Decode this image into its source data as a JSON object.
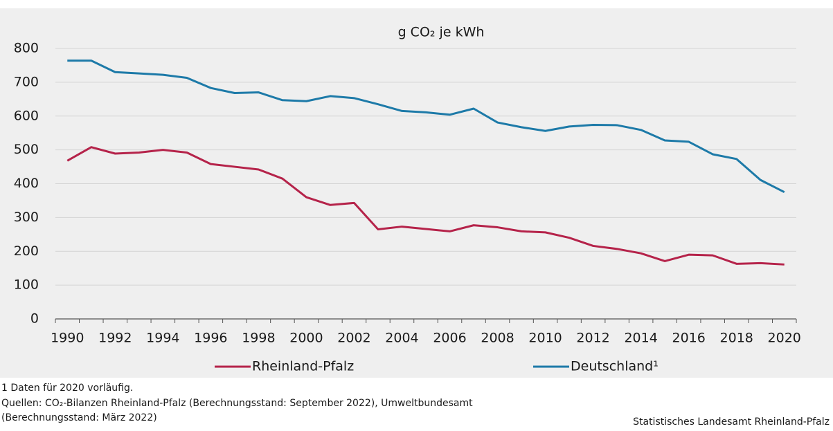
{
  "chart_data": {
    "type": "line",
    "title": "g CO₂ je kWh",
    "categories": [
      "1990",
      null,
      "1992",
      null,
      "1994",
      null,
      "1996",
      null,
      "1998",
      null,
      "2000",
      null,
      "2002",
      null,
      "2004",
      null,
      "2006",
      null,
      "2008",
      null,
      "2010",
      null,
      "2012",
      null,
      "2014",
      null,
      "2016",
      null,
      "2018",
      null,
      "2020"
    ],
    "series": [
      {
        "name": "Rheinland-Pfalz",
        "color": "#b5234a",
        "values": [
          468,
          508,
          489,
          492,
          500,
          492,
          458,
          450,
          442,
          415,
          360,
          337,
          343,
          265,
          273,
          266,
          259,
          277,
          271,
          259,
          256,
          240,
          216,
          207,
          194,
          171,
          190,
          188,
          163,
          165,
          161
        ]
      },
      {
        "name": "Deutschland¹",
        "color": "#1d7aa8",
        "values": [
          764,
          764,
          730,
          726,
          722,
          713,
          683,
          668,
          670,
          647,
          644,
          659,
          653,
          635,
          615,
          611,
          604,
          622,
          581,
          567,
          556,
          569,
          574,
          573,
          559,
          528,
          524,
          487,
          473,
          411,
          375
        ]
      }
    ],
    "ylim": [
      0,
      800
    ],
    "yticks": [
      0,
      100,
      200,
      300,
      400,
      500,
      600,
      700,
      800
    ],
    "grid": true,
    "footnotes": [
      "1 Daten für 2020 vorläufig.",
      "Quellen: CO₂-Bilanzen Rheinland-Pfalz (Berechnungsstand: September 2022), Umweltbundesamt",
      "(Berechnungsstand: März 2022)"
    ],
    "source": "Statistisches Landesamt Rheinland-Pfalz"
  }
}
